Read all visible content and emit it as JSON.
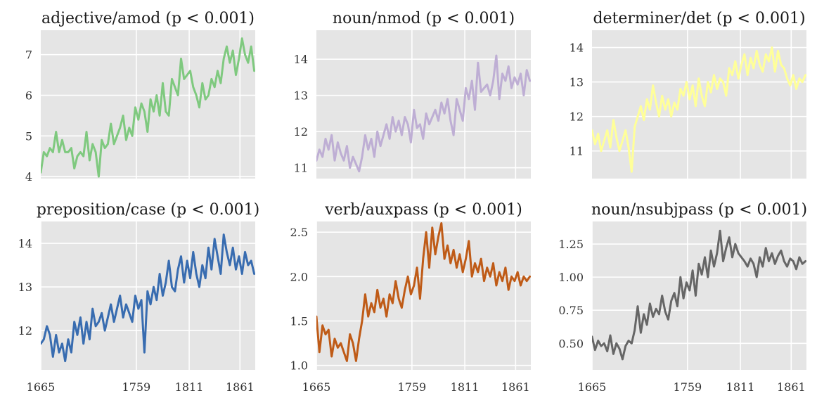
{
  "chart_data": [
    {
      "type": "line",
      "title": "adjective/amod (p < 0.001)",
      "color": "#7fc97f",
      "xlim": [
        1665,
        1876
      ],
      "ylim": [
        3.95,
        7.6
      ],
      "yticks": [
        4,
        5,
        6,
        7
      ],
      "ytick_labels": [
        "4",
        "5",
        "6",
        "7"
      ],
      "xticks": [
        1759,
        1811,
        1861
      ],
      "xtick_labels": [],
      "x": [
        1665,
        1668,
        1671,
        1674,
        1677,
        1680,
        1683,
        1686,
        1689,
        1692,
        1695,
        1698,
        1701,
        1704,
        1707,
        1710,
        1713,
        1716,
        1719,
        1722,
        1725,
        1728,
        1731,
        1734,
        1737,
        1740,
        1743,
        1746,
        1749,
        1752,
        1755,
        1758,
        1761,
        1764,
        1767,
        1770,
        1773,
        1776,
        1779,
        1782,
        1785,
        1788,
        1791,
        1794,
        1797,
        1800,
        1803,
        1806,
        1809,
        1812,
        1815,
        1818,
        1821,
        1824,
        1827,
        1830,
        1833,
        1836,
        1839,
        1842,
        1845,
        1848,
        1851,
        1854,
        1857,
        1860,
        1863,
        1866,
        1869,
        1872,
        1875
      ],
      "y": [
        4.1,
        4.6,
        4.5,
        4.7,
        4.6,
        5.1,
        4.6,
        4.9,
        4.6,
        4.6,
        4.7,
        4.2,
        4.5,
        4.6,
        4.5,
        5.1,
        4.4,
        4.8,
        4.6,
        4.0,
        4.9,
        4.7,
        4.8,
        5.3,
        4.8,
        5.0,
        5.2,
        5.5,
        4.9,
        5.2,
        5.0,
        5.7,
        5.4,
        5.8,
        5.6,
        5.1,
        5.9,
        5.6,
        6.0,
        5.5,
        6.3,
        5.6,
        5.5,
        6.4,
        6.2,
        6.0,
        6.9,
        6.4,
        6.5,
        6.6,
        6.2,
        6.0,
        5.7,
        6.3,
        5.9,
        6.0,
        6.4,
        6.2,
        6.6,
        6.3,
        6.9,
        7.2,
        6.8,
        7.1,
        6.5,
        6.9,
        7.4,
        7.0,
        6.8,
        7.2,
        6.6
      ]
    },
    {
      "type": "line",
      "title": "noun/nmod (p < 0.001)",
      "color": "#beaed4",
      "xlim": [
        1665,
        1876
      ],
      "ylim": [
        10.7,
        14.8
      ],
      "yticks": [
        11,
        12,
        13,
        14
      ],
      "ytick_labels": [
        "11",
        "12",
        "13",
        "14"
      ],
      "xticks": [
        1759,
        1811,
        1861
      ],
      "xtick_labels": [],
      "x": [
        1665,
        1668,
        1671,
        1674,
        1677,
        1680,
        1683,
        1686,
        1689,
        1692,
        1695,
        1698,
        1701,
        1704,
        1707,
        1710,
        1713,
        1716,
        1719,
        1722,
        1725,
        1728,
        1731,
        1734,
        1737,
        1740,
        1743,
        1746,
        1749,
        1752,
        1755,
        1758,
        1761,
        1764,
        1767,
        1770,
        1773,
        1776,
        1779,
        1782,
        1785,
        1788,
        1791,
        1794,
        1797,
        1800,
        1803,
        1806,
        1809,
        1812,
        1815,
        1818,
        1821,
        1824,
        1827,
        1830,
        1833,
        1836,
        1839,
        1842,
        1845,
        1848,
        1851,
        1854,
        1857,
        1860,
        1863,
        1866,
        1869,
        1872,
        1875
      ],
      "y": [
        11.2,
        11.5,
        11.3,
        11.8,
        11.5,
        11.9,
        11.2,
        11.7,
        11.4,
        11.2,
        11.6,
        11.0,
        11.3,
        11.1,
        10.9,
        11.3,
        11.9,
        11.5,
        11.8,
        11.3,
        12.0,
        11.6,
        11.9,
        12.2,
        11.8,
        12.4,
        12.0,
        12.3,
        11.9,
        12.4,
        12.2,
        11.7,
        12.6,
        12.1,
        12.2,
        11.8,
        12.5,
        12.2,
        12.4,
        12.6,
        12.3,
        12.8,
        12.5,
        12.9,
        12.3,
        11.9,
        12.9,
        12.6,
        12.3,
        13.2,
        12.9,
        13.4,
        12.6,
        13.9,
        13.1,
        13.2,
        13.3,
        13.0,
        13.4,
        14.1,
        12.9,
        13.6,
        13.4,
        13.8,
        13.2,
        13.5,
        13.3,
        13.6,
        13.0,
        13.7,
        13.4
      ]
    },
    {
      "type": "line",
      "title": "determiner/det (p < 0.001)",
      "color": "#ffff99",
      "xlim": [
        1665,
        1876
      ],
      "ylim": [
        10.2,
        14.5
      ],
      "yticks": [
        11,
        12,
        13,
        14
      ],
      "ytick_labels": [
        "11",
        "12",
        "13",
        "14"
      ],
      "xticks": [
        1759,
        1811,
        1861
      ],
      "xtick_labels": [],
      "x": [
        1665,
        1668,
        1671,
        1674,
        1677,
        1680,
        1683,
        1686,
        1689,
        1692,
        1695,
        1698,
        1701,
        1704,
        1707,
        1710,
        1713,
        1716,
        1719,
        1722,
        1725,
        1728,
        1731,
        1734,
        1737,
        1740,
        1743,
        1746,
        1749,
        1752,
        1755,
        1758,
        1761,
        1764,
        1767,
        1770,
        1773,
        1776,
        1779,
        1782,
        1785,
        1788,
        1791,
        1794,
        1797,
        1800,
        1803,
        1806,
        1809,
        1812,
        1815,
        1818,
        1821,
        1824,
        1827,
        1830,
        1833,
        1836,
        1839,
        1842,
        1845,
        1848,
        1851,
        1854,
        1857,
        1860,
        1863,
        1866,
        1869,
        1872,
        1875
      ],
      "y": [
        11.6,
        11.2,
        11.5,
        11.0,
        11.3,
        11.6,
        11.1,
        11.9,
        11.4,
        11.0,
        11.3,
        11.6,
        11.1,
        10.4,
        11.7,
        12.0,
        12.3,
        11.9,
        12.5,
        12.2,
        12.9,
        12.4,
        12.0,
        12.6,
        12.2,
        12.5,
        12.0,
        12.4,
        12.2,
        12.8,
        12.6,
        13.0,
        12.5,
        12.9,
        12.3,
        13.1,
        12.6,
        12.3,
        13.0,
        12.7,
        13.2,
        12.8,
        13.1,
        13.0,
        12.6,
        13.4,
        13.2,
        13.6,
        13.1,
        13.5,
        13.8,
        13.2,
        13.7,
        13.4,
        13.9,
        13.5,
        13.3,
        13.8,
        13.6,
        14.0,
        13.3,
        13.9,
        13.5,
        13.4,
        13.1,
        12.9,
        13.2,
        12.8,
        13.1,
        13.0,
        13.2
      ]
    },
    {
      "type": "line",
      "title": "preposition/case (p < 0.001)",
      "color": "#386cb0",
      "xlim": [
        1665,
        1876
      ],
      "ylim": [
        11.1,
        14.5
      ],
      "yticks": [
        12,
        13,
        14
      ],
      "ytick_labels": [
        "12",
        "13",
        "14"
      ],
      "xticks": [
        1665,
        1759,
        1811,
        1861
      ],
      "xtick_labels": [
        "1665",
        "1759",
        "1811",
        "1861"
      ],
      "x": [
        1665,
        1668,
        1671,
        1674,
        1677,
        1680,
        1683,
        1686,
        1689,
        1692,
        1695,
        1698,
        1701,
        1704,
        1707,
        1710,
        1713,
        1716,
        1719,
        1722,
        1725,
        1728,
        1731,
        1734,
        1737,
        1740,
        1743,
        1746,
        1749,
        1752,
        1755,
        1758,
        1761,
        1764,
        1767,
        1770,
        1773,
        1776,
        1779,
        1782,
        1785,
        1788,
        1791,
        1794,
        1797,
        1800,
        1803,
        1806,
        1809,
        1812,
        1815,
        1818,
        1821,
        1824,
        1827,
        1830,
        1833,
        1836,
        1839,
        1842,
        1845,
        1848,
        1851,
        1854,
        1857,
        1860,
        1863,
        1866,
        1869,
        1872,
        1875
      ],
      "y": [
        11.7,
        11.8,
        12.1,
        11.9,
        11.4,
        11.9,
        11.5,
        11.7,
        11.3,
        11.8,
        11.5,
        12.2,
        11.9,
        12.3,
        11.7,
        12.2,
        11.8,
        12.5,
        12.1,
        12.2,
        12.4,
        12.0,
        12.3,
        12.6,
        12.2,
        12.5,
        12.8,
        12.3,
        12.6,
        12.4,
        12.2,
        12.8,
        12.5,
        12.7,
        11.5,
        12.9,
        12.6,
        13.0,
        12.7,
        13.3,
        12.8,
        13.1,
        13.6,
        13.0,
        12.9,
        13.4,
        13.7,
        13.1,
        13.6,
        13.2,
        13.8,
        13.3,
        13.0,
        13.5,
        13.2,
        13.9,
        13.4,
        14.1,
        13.7,
        13.3,
        14.2,
        13.8,
        13.5,
        13.9,
        13.4,
        13.7,
        13.3,
        13.8,
        13.5,
        13.6,
        13.3
      ]
    },
    {
      "type": "line",
      "title": "verb/auxpass (p < 0.001)",
      "color": "#bf5b17",
      "xlim": [
        1665,
        1876
      ],
      "ylim": [
        0.95,
        2.62
      ],
      "yticks": [
        1.0,
        1.5,
        2.0,
        2.5
      ],
      "ytick_labels": [
        "1.0",
        "1.5",
        "2.0",
        "2.5"
      ],
      "xticks": [
        1665,
        1759,
        1811,
        1861
      ],
      "xtick_labels": [
        "1665",
        "1759",
        "1811",
        "1861"
      ],
      "x": [
        1665,
        1668,
        1671,
        1674,
        1677,
        1680,
        1683,
        1686,
        1689,
        1692,
        1695,
        1698,
        1701,
        1704,
        1707,
        1710,
        1713,
        1716,
        1719,
        1722,
        1725,
        1728,
        1731,
        1734,
        1737,
        1740,
        1743,
        1746,
        1749,
        1752,
        1755,
        1758,
        1761,
        1764,
        1767,
        1770,
        1773,
        1776,
        1779,
        1782,
        1785,
        1788,
        1791,
        1794,
        1797,
        1800,
        1803,
        1806,
        1809,
        1812,
        1815,
        1818,
        1821,
        1824,
        1827,
        1830,
        1833,
        1836,
        1839,
        1842,
        1845,
        1848,
        1851,
        1854,
        1857,
        1860,
        1863,
        1866,
        1869,
        1872,
        1875
      ],
      "y": [
        1.55,
        1.15,
        1.45,
        1.35,
        1.4,
        1.1,
        1.3,
        1.2,
        1.25,
        1.15,
        1.05,
        1.35,
        1.25,
        1.05,
        1.3,
        1.5,
        1.8,
        1.55,
        1.7,
        1.6,
        1.85,
        1.65,
        1.75,
        1.55,
        1.8,
        1.7,
        1.95,
        1.75,
        1.65,
        1.85,
        2.0,
        1.8,
        1.9,
        2.1,
        1.75,
        2.2,
        2.5,
        2.1,
        2.55,
        2.25,
        2.45,
        2.6,
        2.2,
        2.35,
        2.15,
        2.3,
        2.1,
        2.25,
        2.05,
        2.2,
        2.4,
        2.0,
        2.15,
        2.05,
        2.2,
        1.95,
        2.1,
        2.0,
        2.15,
        1.9,
        2.05,
        1.95,
        2.1,
        1.85,
        2.0,
        1.95,
        2.05,
        1.9,
        2.0,
        1.95,
        2.0
      ]
    },
    {
      "type": "line",
      "title": "noun/nsubjpass (p < 0.001)",
      "color": "#666666",
      "xlim": [
        1665,
        1876
      ],
      "ylim": [
        0.3,
        1.42
      ],
      "yticks": [
        0.5,
        0.75,
        1.0,
        1.25
      ],
      "ytick_labels": [
        "0.50",
        "0.75",
        "1.00",
        "1.25"
      ],
      "xticks": [
        1665,
        1759,
        1811,
        1861
      ],
      "xtick_labels": [
        "1665",
        "1759",
        "1811",
        "1861"
      ],
      "x": [
        1665,
        1668,
        1671,
        1674,
        1677,
        1680,
        1683,
        1686,
        1689,
        1692,
        1695,
        1698,
        1701,
        1704,
        1707,
        1710,
        1713,
        1716,
        1719,
        1722,
        1725,
        1728,
        1731,
        1734,
        1737,
        1740,
        1743,
        1746,
        1749,
        1752,
        1755,
        1758,
        1761,
        1764,
        1767,
        1770,
        1773,
        1776,
        1779,
        1782,
        1785,
        1788,
        1791,
        1794,
        1797,
        1800,
        1803,
        1806,
        1809,
        1812,
        1815,
        1818,
        1821,
        1824,
        1827,
        1830,
        1833,
        1836,
        1839,
        1842,
        1845,
        1848,
        1851,
        1854,
        1857,
        1860,
        1863,
        1866,
        1869,
        1872,
        1875
      ],
      "y": [
        0.55,
        0.45,
        0.52,
        0.48,
        0.5,
        0.44,
        0.56,
        0.42,
        0.5,
        0.46,
        0.38,
        0.48,
        0.52,
        0.5,
        0.6,
        0.78,
        0.58,
        0.72,
        0.64,
        0.8,
        0.7,
        0.76,
        0.72,
        0.86,
        0.74,
        0.68,
        0.82,
        0.88,
        0.78,
        1.0,
        0.84,
        0.96,
        0.9,
        1.05,
        0.86,
        1.1,
        1.02,
        1.15,
        1.0,
        1.2,
        1.08,
        1.18,
        1.35,
        1.12,
        1.22,
        1.3,
        1.15,
        1.25,
        1.18,
        1.15,
        1.12,
        1.08,
        1.14,
        1.1,
        1.0,
        1.15,
        1.08,
        1.22,
        1.12,
        1.18,
        1.1,
        1.16,
        1.2,
        1.12,
        1.08,
        1.14,
        1.12,
        1.06,
        1.15,
        1.1,
        1.12
      ]
    }
  ]
}
